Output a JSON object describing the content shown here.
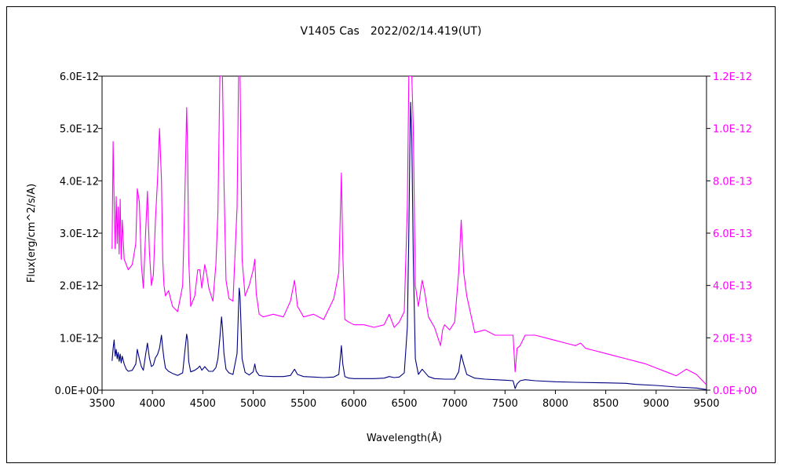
{
  "chart_data": {
    "type": "line",
    "title": "V1405 Cas　2022/02/14.419(UT)",
    "xlabel": "Wavelength(Å)",
    "ylabel": "Flux(erg/cm^2/s/A)",
    "xlim": [
      3500,
      9500
    ],
    "ylim_left": [
      0,
      6e-12
    ],
    "ylim_right": [
      0,
      1.2e-12
    ],
    "x_ticks": [
      "3500",
      "4000",
      "4500",
      "5000",
      "5500",
      "6000",
      "6500",
      "7000",
      "7500",
      "8000",
      "8500",
      "9000",
      "9500"
    ],
    "y_ticks_left": [
      "0.0E+00",
      "1.0E-12",
      "2.0E-12",
      "3.0E-12",
      "4.0E-12",
      "5.0E-12",
      "6.0E-12"
    ],
    "y_ticks_right": [
      "0.0E+00",
      "2.0E-13",
      "4.0E-13",
      "6.0E-13",
      "8.0E-13",
      "1.0E-12",
      "1.2E-12"
    ],
    "grid": false,
    "colors": {
      "left_series": "#000080",
      "right_series": "#ff00ff",
      "right_axis": "#ff00ff"
    },
    "series": [
      {
        "axis": "left",
        "x": [
          3600,
          3610,
          3620,
          3630,
          3640,
          3650,
          3660,
          3670,
          3680,
          3690,
          3700,
          3720,
          3740,
          3760,
          3800,
          3835,
          3850,
          3870,
          3890,
          3910,
          3930,
          3950,
          3970,
          3990,
          4010,
          4030,
          4050,
          4070,
          4090,
          4102,
          4115,
          4130,
          4160,
          4200,
          4250,
          4300,
          4320,
          4340,
          4350,
          4360,
          4380,
          4420,
          4450,
          4471,
          4490,
          4520,
          4540,
          4560,
          4600,
          4630,
          4650,
          4670,
          4686,
          4695,
          4710,
          4730,
          4760,
          4800,
          4840,
          4855,
          4861,
          4870,
          4890,
          4920,
          4960,
          5000,
          5016,
          5030,
          5060,
          5100,
          5200,
          5300,
          5370,
          5411,
          5440,
          5500,
          5600,
          5700,
          5800,
          5850,
          5876,
          5890,
          5910,
          5950,
          6000,
          6100,
          6200,
          6300,
          6350,
          6400,
          6450,
          6500,
          6530,
          6545,
          6555,
          6563,
          6575,
          6590,
          6610,
          6640,
          6678,
          6700,
          6740,
          6800,
          6900,
          7000,
          7040,
          7065,
          7090,
          7120,
          7200,
          7300,
          7400,
          7500,
          7580,
          7600,
          7620,
          7650,
          7700,
          7800,
          8000,
          8200,
          8500,
          8700,
          8800,
          9000,
          9200,
          9400,
          9500
        ],
        "y": [
          5.6e-13,
          8e-13,
          9.6e-13,
          6.5e-13,
          7.8e-13,
          6e-13,
          7.2e-13,
          5.5e-13,
          6.9e-13,
          5.2e-13,
          6.5e-13,
          5e-13,
          4e-13,
          3.6e-13,
          3.8e-13,
          5e-13,
          7.8e-13,
          6e-13,
          4.5e-13,
          3.8e-13,
          6.5e-13,
          9e-13,
          6.2e-13,
          4.5e-13,
          4.8e-13,
          6.2e-13,
          6.8e-13,
          8e-13,
          1.05e-12,
          8e-13,
          6e-13,
          4.2e-13,
          3.6e-13,
          3.2e-13,
          2.8e-13,
          3.3e-13,
          7e-13,
          1.07e-12,
          9.5e-13,
          5.5e-13,
          3.5e-13,
          3.8e-13,
          4.2e-13,
          4.6e-13,
          3.8e-13,
          4.5e-13,
          4e-13,
          3.6e-13,
          3.6e-13,
          4.3e-13,
          6e-13,
          1e-12,
          1.4e-12,
          1.2e-12,
          7e-13,
          4e-13,
          3.3e-13,
          3e-13,
          7e-13,
          1.6e-12,
          1.95e-12,
          1.8e-12,
          6e-13,
          3.4e-13,
          2.9e-13,
          3.5e-13,
          5e-13,
          3.6e-13,
          2.8e-13,
          2.7e-13,
          2.6e-13,
          2.6e-13,
          2.8e-13,
          4e-13,
          3e-13,
          2.6e-13,
          2.5e-13,
          2.4e-13,
          2.5e-13,
          3e-13,
          8.5e-13,
          5e-13,
          2.6e-13,
          2.3e-13,
          2.2e-13,
          2.2e-13,
          2.2e-13,
          2.3e-13,
          2.6e-13,
          2.4e-13,
          2.5e-13,
          3.3e-13,
          1.2e-12,
          3e-12,
          4.6e-12,
          5.5e-12,
          4.8e-12,
          2.5e-12,
          6e-13,
          3e-13,
          4e-13,
          3.5e-13,
          2.6e-13,
          2.2e-13,
          2.1e-13,
          2.1e-13,
          3.5e-13,
          6.8e-13,
          5e-13,
          3e-13,
          2.3e-13,
          2.1e-13,
          2e-13,
          1.9e-13,
          1.8e-13,
          3e-14,
          1.2e-13,
          1.8e-13,
          2e-13,
          1.8e-13,
          1.6e-13,
          1.5e-13,
          1.4e-13,
          1.3e-13,
          1.1e-13,
          9e-14,
          6e-14,
          4e-14,
          1e-14
        ]
      },
      {
        "axis": "right",
        "x": [
          3600,
          3610,
          3620,
          3630,
          3640,
          3650,
          3660,
          3670,
          3680,
          3690,
          3700,
          3720,
          3740,
          3760,
          3800,
          3835,
          3850,
          3870,
          3890,
          3910,
          3930,
          3950,
          3970,
          3990,
          4010,
          4030,
          4050,
          4070,
          4090,
          4102,
          4115,
          4130,
          4160,
          4200,
          4250,
          4300,
          4320,
          4340,
          4350,
          4360,
          4380,
          4420,
          4450,
          4471,
          4490,
          4520,
          4540,
          4560,
          4600,
          4630,
          4650,
          4670,
          4686,
          4695,
          4710,
          4730,
          4760,
          4800,
          4840,
          4855,
          4861,
          4870,
          4890,
          4920,
          4960,
          5000,
          5016,
          5030,
          5060,
          5100,
          5200,
          5300,
          5370,
          5411,
          5440,
          5500,
          5600,
          5700,
          5800,
          5850,
          5876,
          5890,
          5910,
          5950,
          6000,
          6100,
          6200,
          6300,
          6350,
          6400,
          6450,
          6500,
          6530,
          6545,
          6555,
          6563,
          6575,
          6590,
          6610,
          6640,
          6678,
          6700,
          6740,
          6800,
          6860,
          6880,
          6900,
          6950,
          7000,
          7040,
          7065,
          7090,
          7120,
          7200,
          7300,
          7400,
          7500,
          7580,
          7600,
          7620,
          7650,
          7700,
          7800,
          7900,
          8000,
          8100,
          8200,
          8250,
          8300,
          8400,
          8500,
          8600,
          8700,
          8800,
          8900,
          9000,
          9100,
          9200,
          9300,
          9400,
          9500
        ],
        "y": [
          5.4e-13,
          9.5e-13,
          7.2e-13,
          5.4e-13,
          7.4e-13,
          5.6e-13,
          7e-13,
          5.2e-13,
          7.3e-13,
          5e-13,
          6.5e-13,
          5e-13,
          4.8e-13,
          4.6e-13,
          4.8e-13,
          5.6e-13,
          7.7e-13,
          7.2e-13,
          4.8e-13,
          3.9e-13,
          5.8e-13,
          7.6e-13,
          5.3e-13,
          4e-13,
          4.4e-13,
          6.5e-13,
          8e-13,
          1e-12,
          8e-13,
          5e-13,
          4e-13,
          3.6e-13,
          3.8e-13,
          3.2e-13,
          3e-13,
          4e-13,
          7e-13,
          1.08e-12,
          9e-13,
          5e-13,
          3.2e-13,
          3.6e-13,
          4.6e-13,
          4.6e-13,
          3.9e-13,
          4.8e-13,
          4.4e-13,
          3.9e-13,
          3.4e-13,
          4.8e-13,
          6.8e-13,
          1.2e-12,
          1.2e-12,
          1.2e-12,
          8e-13,
          4.2e-13,
          3.5e-13,
          3.4e-13,
          7e-13,
          1.2e-12,
          1.2e-12,
          1.2e-12,
          5e-13,
          3.6e-13,
          4e-13,
          4.6e-13,
          5e-13,
          3.7e-13,
          2.9e-13,
          2.8e-13,
          2.9e-13,
          2.8e-13,
          3.4e-13,
          4.2e-13,
          3.2e-13,
          2.8e-13,
          2.9e-13,
          2.7e-13,
          3.5e-13,
          4.5e-13,
          8.3e-13,
          5.2e-13,
          2.7e-13,
          2.6e-13,
          2.5e-13,
          2.5e-13,
          2.4e-13,
          2.5e-13,
          2.9e-13,
          2.4e-13,
          2.6e-13,
          3e-13,
          7e-13,
          1.2e-12,
          1.2e-12,
          1.2e-12,
          1.2e-12,
          1e-12,
          4e-13,
          3.2e-13,
          4.2e-13,
          3.8e-13,
          2.8e-13,
          2.4e-13,
          1.7e-13,
          2.3e-13,
          2.5e-13,
          2.3e-13,
          2.6e-13,
          4.5e-13,
          6.5e-13,
          4.5e-13,
          3.6e-13,
          2.2e-13,
          2.3e-13,
          2.1e-13,
          2.1e-13,
          2.1e-13,
          7e-14,
          1.6e-13,
          1.7e-13,
          2.1e-13,
          2.1e-13,
          2e-13,
          1.9e-13,
          1.8e-13,
          1.7e-13,
          1.8e-13,
          1.6e-13,
          1.5e-13,
          1.4e-13,
          1.3e-13,
          1.2e-13,
          1.1e-13,
          1e-13,
          8.5e-14,
          7e-14,
          5.5e-14,
          8e-14,
          6e-14,
          2e-14
        ]
      }
    ]
  }
}
